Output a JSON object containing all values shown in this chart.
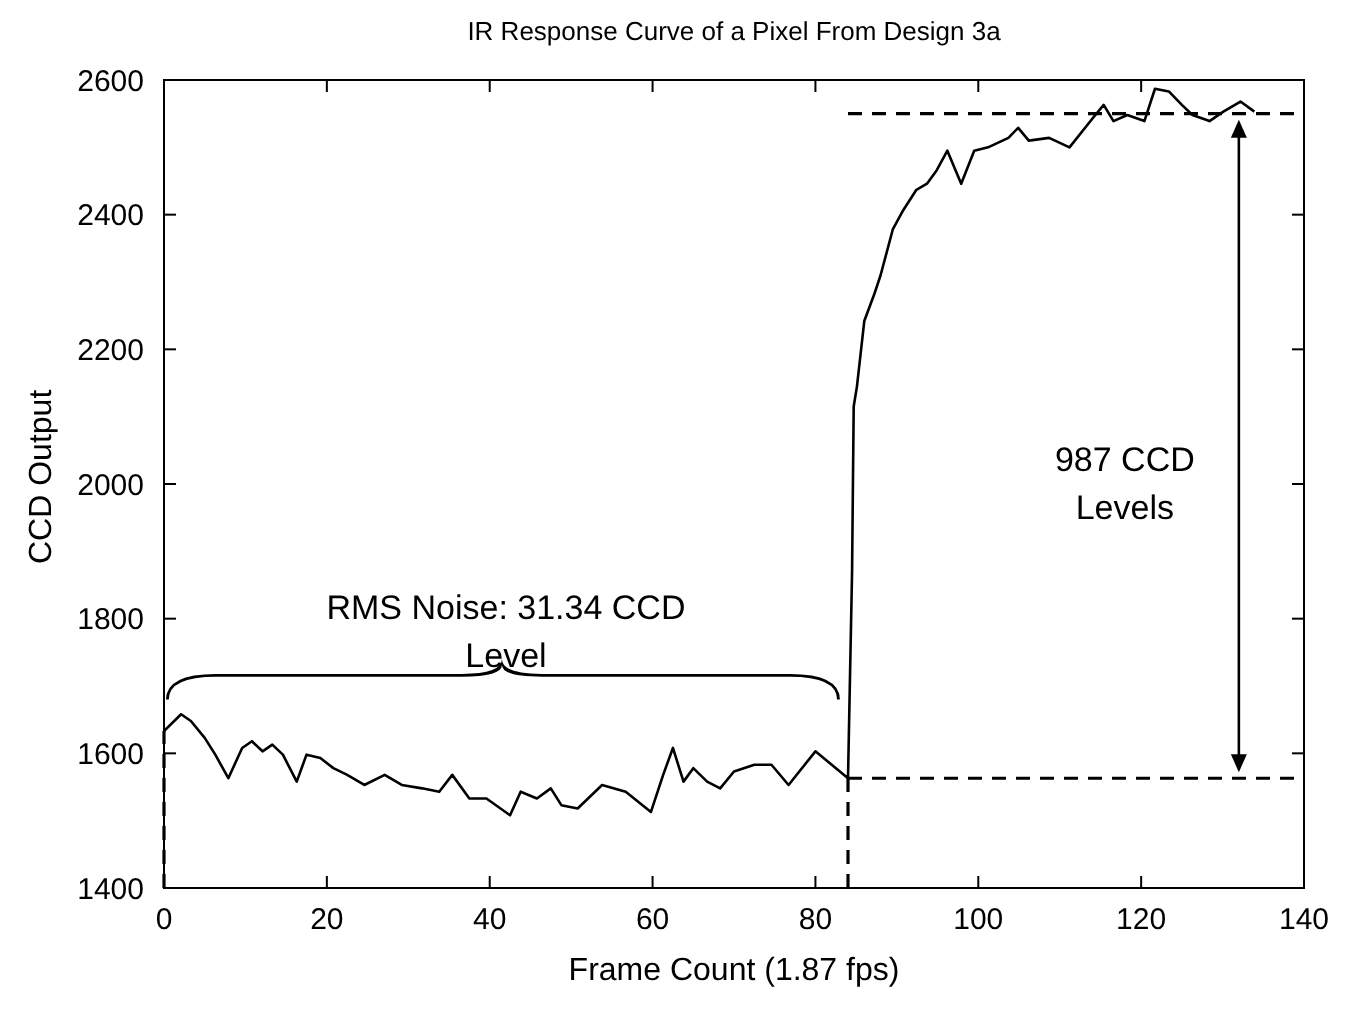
{
  "chart_data": {
    "type": "line",
    "title": "IR Response Curve of a Pixel From Design 3a",
    "xlabel": "Frame Count (1.87 fps)",
    "ylabel": "CCD Output",
    "x": [
      0,
      2.1,
      3.3,
      5,
      6.3,
      7.9,
      9.6,
      10.8,
      12.1,
      13.3,
      14.6,
      16.3,
      17.5,
      19.2,
      20.8,
      22.5,
      24.6,
      27.1,
      29.2,
      31.7,
      33.8,
      35.4,
      37.5,
      39.6,
      42.5,
      43.8,
      45.8,
      47.5,
      48.8,
      50.8,
      53.8,
      56.7,
      59.8,
      61.3,
      62.5,
      63.8,
      65,
      66.7,
      68.3,
      70,
      72.5,
      74.6,
      76.7,
      80,
      84,
      84.5,
      84.7,
      85.1,
      86,
      87.2,
      88,
      89.5,
      90.8,
      92.4,
      93.7,
      94.9,
      96.2,
      97.9,
      99.5,
      101.2,
      103.7,
      104.9,
      106.2,
      108.7,
      111.2,
      114.1,
      115.4,
      116.6,
      118.3,
      120.4,
      121.7,
      123.4,
      125,
      126.3,
      128.4,
      130.1,
      132.2,
      133.9
    ],
    "series": [
      {
        "color": "#000000",
        "values": [
          1633,
          1658,
          1648,
          1623,
          1598,
          1563,
          1608,
          1618,
          1603,
          1613,
          1598,
          1558,
          1598,
          1593,
          1578,
          1568,
          1553,
          1568,
          1553,
          1548,
          1543,
          1568,
          1533,
          1533,
          1508,
          1543,
          1533,
          1548,
          1523,
          1518,
          1553,
          1543,
          1513,
          1568,
          1608,
          1558,
          1578,
          1558,
          1548,
          1573,
          1583,
          1583,
          1553,
          1603,
          1563,
          1870,
          2115,
          2145,
          2242,
          2281,
          2310,
          2378,
          2407,
          2437,
          2446,
          2466,
          2495,
          2446,
          2495,
          2500,
          2514,
          2529,
          2510,
          2514,
          2500,
          2544,
          2563,
          2539,
          2548,
          2539,
          2587,
          2583,
          2563,
          2548,
          2539,
          2553,
          2568,
          2553
        ]
      }
    ],
    "xlim": [
      0,
      140
    ],
    "ylim": [
      1400,
      2600
    ],
    "xticks": [
      0,
      20,
      40,
      60,
      80,
      100,
      120,
      140
    ],
    "yticks": [
      1400,
      1600,
      1800,
      2000,
      2200,
      2400,
      2600
    ],
    "ref_lines": [
      {
        "axis": "x",
        "value": 0,
        "line_style": "dashed",
        "color": "#000000"
      },
      {
        "axis": "x",
        "value": 84,
        "line_style": "dashed",
        "color": "#000000"
      },
      {
        "axis": "y",
        "value": 1563,
        "line_style": "dashed",
        "color": "#000000"
      },
      {
        "axis": "y",
        "value": 2550,
        "line_style": "dashed",
        "color": "#000000"
      }
    ],
    "annotations": [
      "RMS Noise: 31.34 CCD\nLevel",
      "987 CCD\nLevels"
    ],
    "marker": "none",
    "line_style": "solid"
  }
}
